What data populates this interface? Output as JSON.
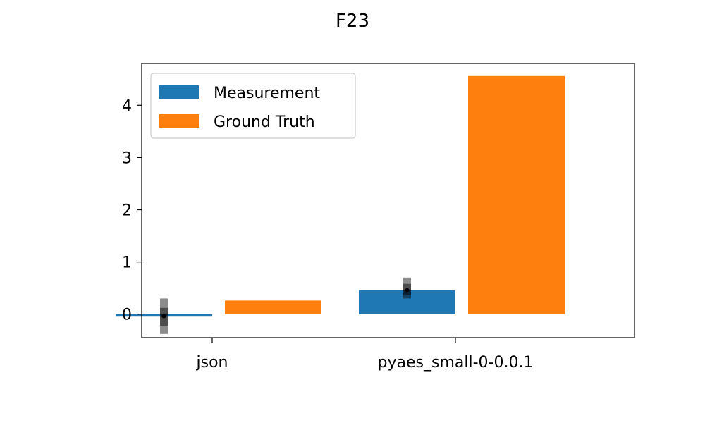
{
  "chart_data": {
    "type": "bar",
    "title": "F23",
    "xlabel": "",
    "ylabel": "",
    "categories": [
      "json",
      "pyaes_small-0-0.0.1"
    ],
    "series": [
      {
        "name": "Measurement",
        "color": "#1f77b4",
        "values": [
          -0.02,
          0.46
        ],
        "error_outer": [
          [
            -0.38,
            0.3
          ],
          [
            0.3,
            0.7
          ]
        ],
        "error_inner": [
          [
            -0.22,
            0.12
          ],
          [
            0.36,
            0.58
          ]
        ],
        "median": [
          -0.04,
          0.46
        ]
      },
      {
        "name": "Ground Truth",
        "color": "#ff7f0e",
        "values": [
          0.26,
          4.56
        ]
      }
    ],
    "ylim": [
      -0.45,
      4.8
    ],
    "yticks": [
      "0",
      "1",
      "2",
      "3",
      "4"
    ],
    "grid": false,
    "legend_position": "upper-left"
  }
}
